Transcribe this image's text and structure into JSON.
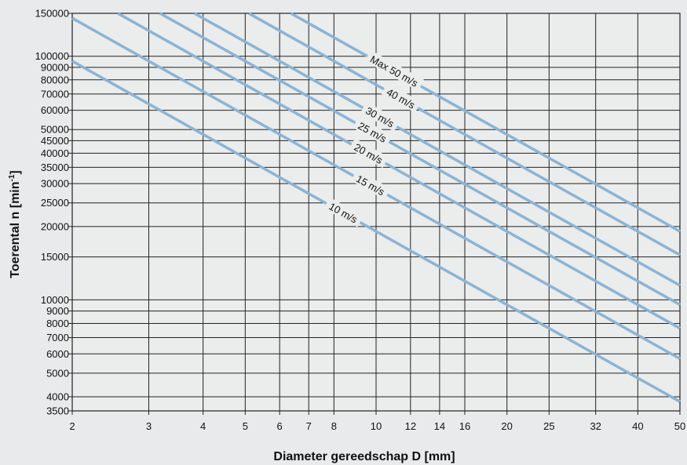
{
  "chart_data": {
    "type": "line",
    "xlabel": "Diameter gereedschap D [mm]",
    "ylabel_main": "Toerental  n [min",
    "ylabel_sup": "-1",
    "ylabel_end": "]",
    "xscale": "log",
    "yscale": "log",
    "xlim": [
      2,
      50
    ],
    "ylim": [
      3500,
      150000
    ],
    "grid": true,
    "x_ticks": [
      2,
      3,
      4,
      5,
      6,
      7,
      8,
      10,
      12,
      14,
      16,
      20,
      25,
      32,
      40,
      50
    ],
    "x_tick_labels": [
      "2",
      "3",
      "4",
      "5",
      "6",
      "7",
      "8",
      "10",
      "12",
      "14",
      "16",
      "20",
      "25",
      "32",
      "40",
      "50"
    ],
    "y_ticks": [
      3500,
      4000,
      5000,
      6000,
      7000,
      8000,
      9000,
      10000,
      15000,
      20000,
      25000,
      30000,
      35000,
      40000,
      45000,
      50000,
      60000,
      70000,
      80000,
      90000,
      100000,
      150000
    ],
    "y_tick_labels": [
      "3500",
      "4000",
      "5000",
      "6000",
      "7000",
      "8000",
      "9000",
      "10000",
      "15000",
      "20000",
      "25000",
      "30000",
      "35000",
      "40000",
      "45000",
      "50000",
      "60000",
      "70000",
      "80000",
      "90000",
      "100000",
      "150000"
    ],
    "line_color": "#8ab4d6",
    "grid_color": "#222222",
    "series": [
      {
        "name": "10 m/s",
        "speed": 10,
        "x": [
          2,
          50
        ],
        "y": [
          95493,
          3820
        ],
        "label_x": 8.4
      },
      {
        "name": "15 m/s",
        "speed": 15,
        "x": [
          2,
          50
        ],
        "y": [
          143239,
          5730
        ],
        "label_x": 9.7
      },
      {
        "name": "20 m/s",
        "speed": 20,
        "x": [
          2.55,
          50
        ],
        "y": [
          149800,
          7639
        ],
        "label_x": 9.6
      },
      {
        "name": "25 m/s",
        "speed": 25,
        "x": [
          3.18,
          50
        ],
        "y": [
          150148,
          9549
        ],
        "label_x": 9.8
      },
      {
        "name": "30 m/s",
        "speed": 30,
        "x": [
          3.82,
          50
        ],
        "y": [
          149990,
          11459
        ],
        "label_x": 10.2
      },
      {
        "name": "40 m/s",
        "speed": 40,
        "x": [
          5.1,
          50
        ],
        "y": [
          149796,
          15279
        ],
        "label_x": 11.4
      },
      {
        "name": "Max 50 m/s",
        "speed": 50,
        "x": [
          6.37,
          50
        ],
        "y": [
          149910,
          19099
        ],
        "label_x": 11.0
      }
    ]
  }
}
